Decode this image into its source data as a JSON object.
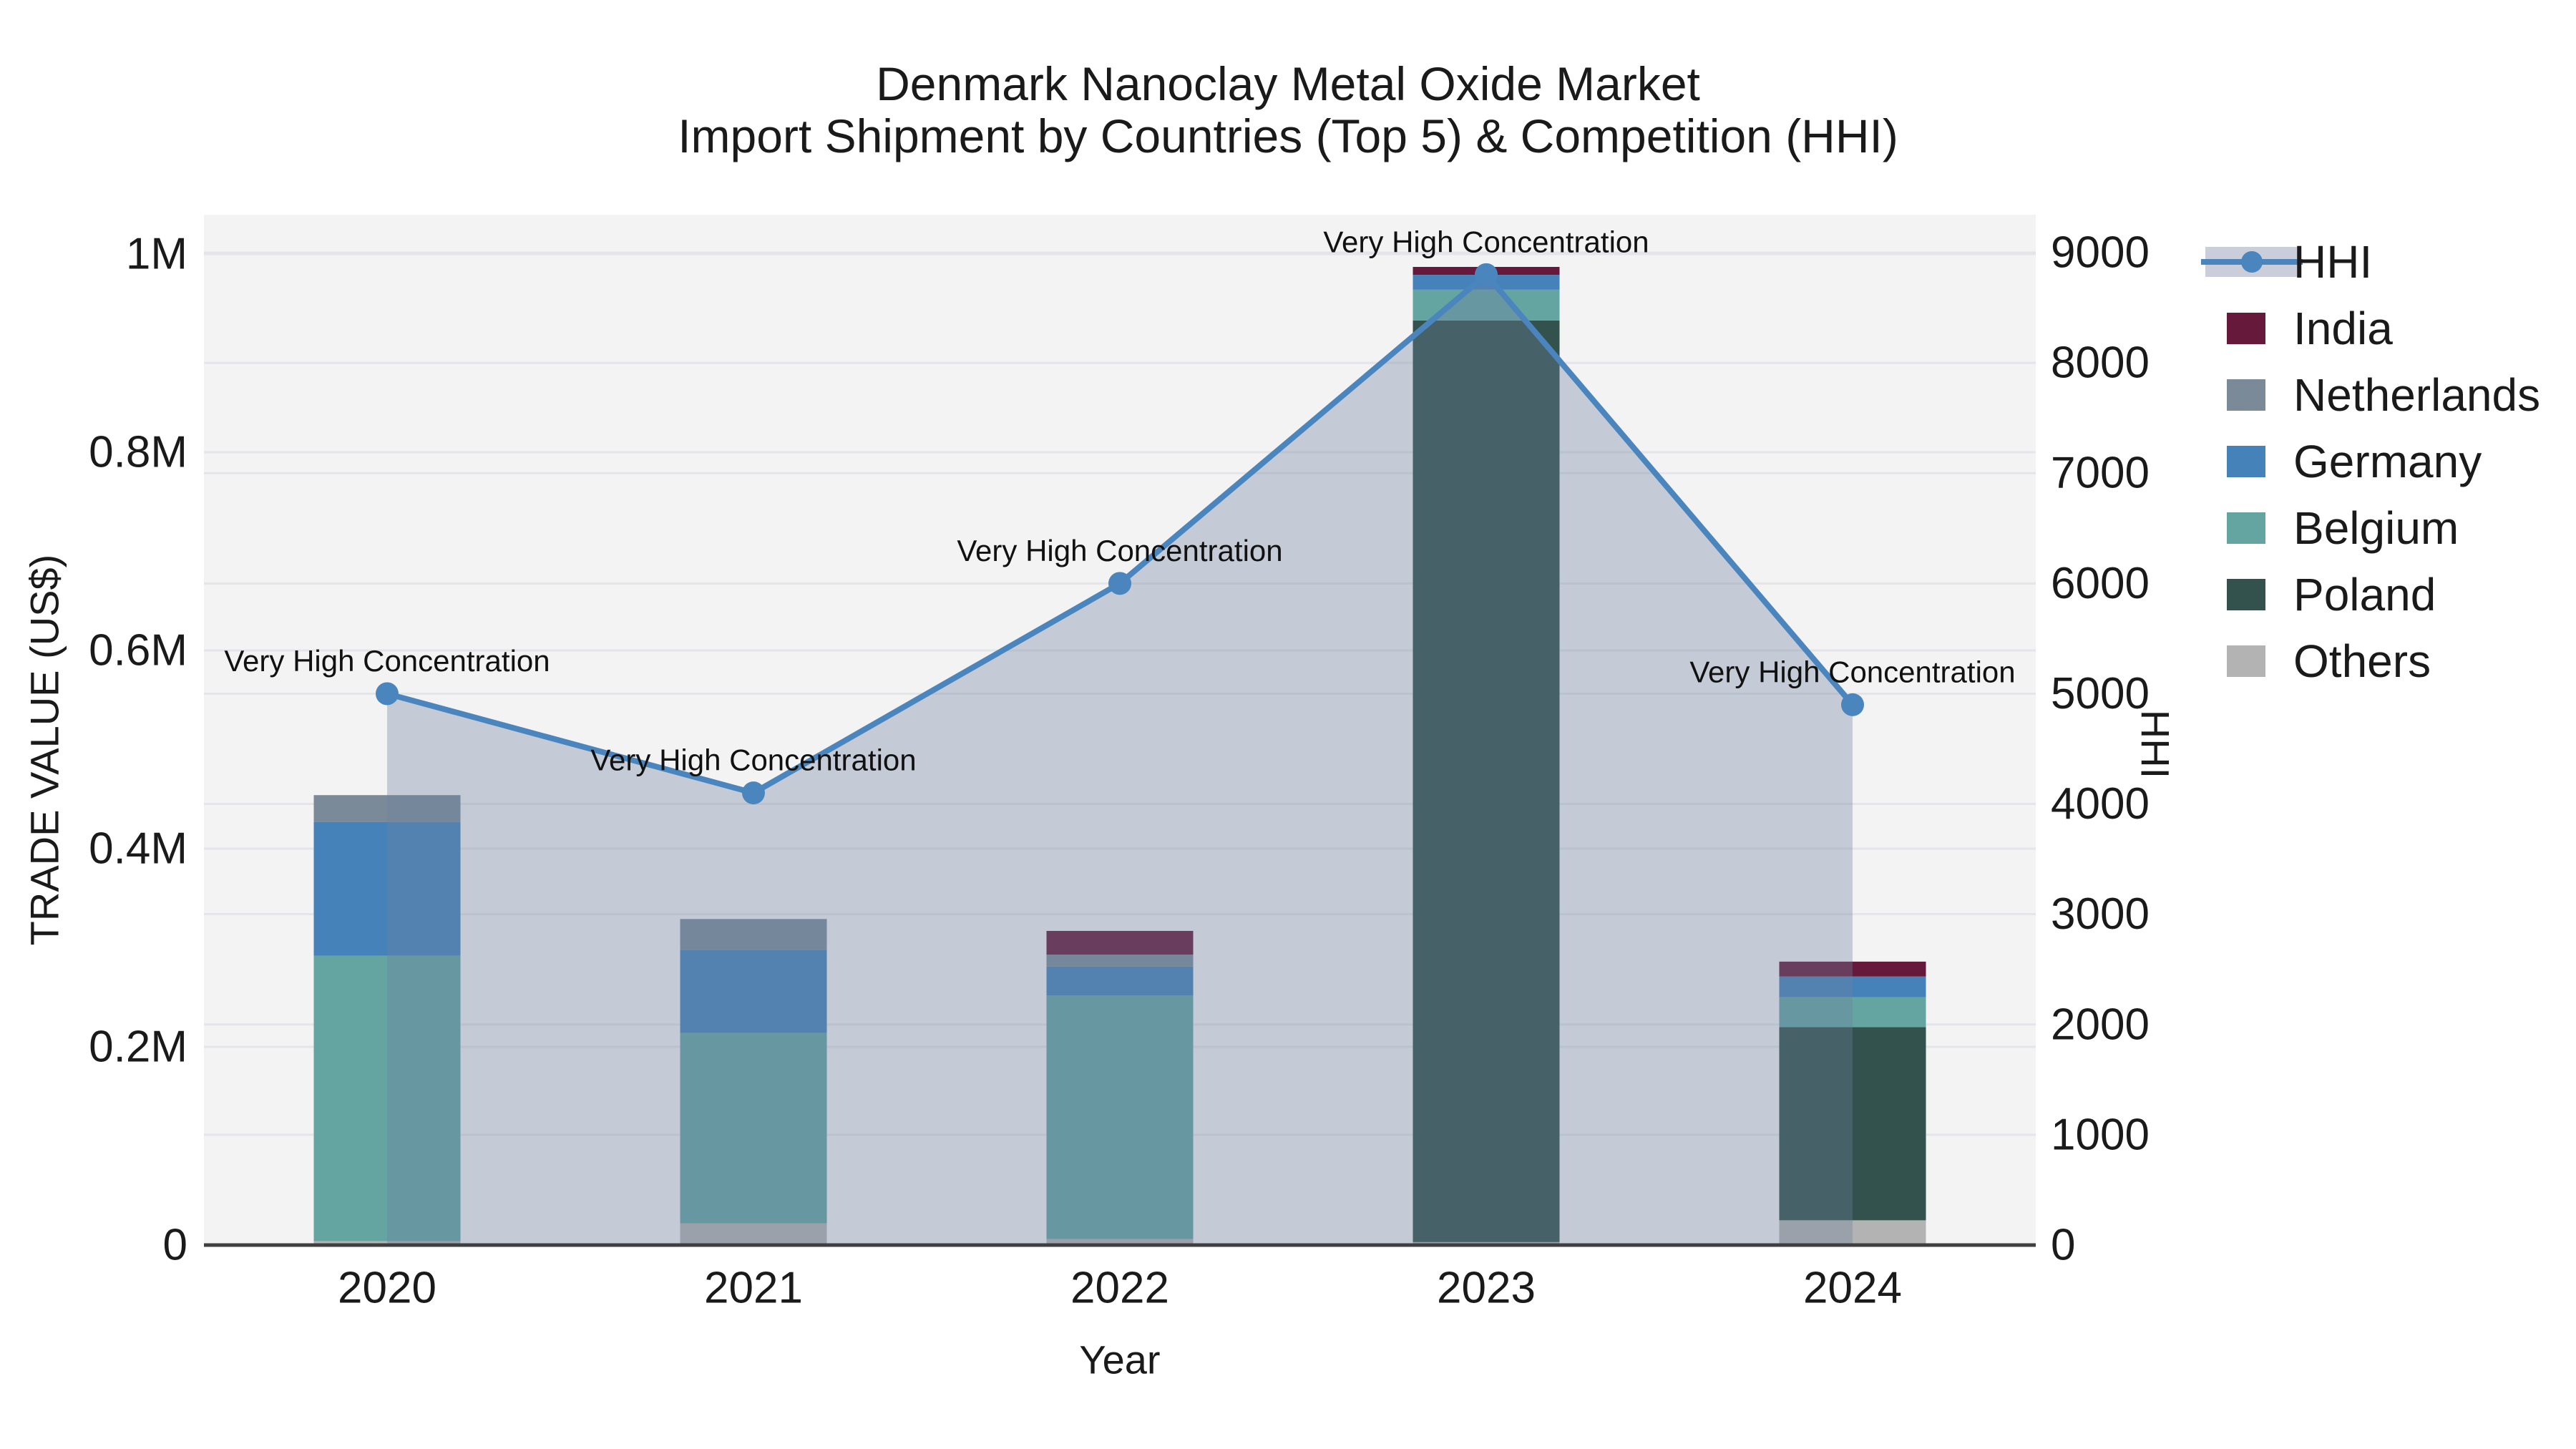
{
  "title": {
    "line1": "Denmark Nanoclay Metal Oxide Market",
    "line2": "Import Shipment by Countries (Top 5) & Competition (HHI)"
  },
  "axes": {
    "left": {
      "title": "TRADE VALUE (US$)",
      "tick_labels": [
        "0",
        "0.2M",
        "0.4M",
        "0.6M",
        "0.8M",
        "1M"
      ],
      "tick_values": [
        0,
        200000,
        400000,
        600000,
        800000,
        1000000
      ],
      "range": [
        0,
        1000000
      ]
    },
    "right": {
      "title": "HHI",
      "tick_labels": [
        "0",
        "1000",
        "2000",
        "3000",
        "4000",
        "5000",
        "6000",
        "7000",
        "8000",
        "9000"
      ],
      "tick_values": [
        0,
        1000,
        2000,
        3000,
        4000,
        5000,
        6000,
        7000,
        8000,
        9000
      ],
      "range": [
        0,
        9000
      ]
    },
    "x": {
      "title": "Year",
      "categories": [
        "2020",
        "2021",
        "2022",
        "2023",
        "2024"
      ]
    }
  },
  "legend": {
    "items": [
      {
        "label": "HHI",
        "symbol": "line-marker",
        "color": "#4A85BE"
      },
      {
        "label": "India",
        "symbol": "square",
        "color": "#67193B"
      },
      {
        "label": "Netherlands",
        "symbol": "square",
        "color": "#7A8A99"
      },
      {
        "label": "Germany",
        "symbol": "square",
        "color": "#4682BA"
      },
      {
        "label": "Belgium",
        "symbol": "square",
        "color": "#64A4A1"
      },
      {
        "label": "Poland",
        "symbol": "square",
        "color": "#33514D"
      },
      {
        "label": "Others",
        "symbol": "square",
        "color": "#B3B3B3"
      }
    ]
  },
  "colors": {
    "plot_bg": "#F3F3F4",
    "grid": "#E4E5E9",
    "axis_line": "#3F3F3F",
    "hhi_line": "#4A85BE",
    "hhi_fill": "rgba(110,130,158,0.35)",
    "text": "#1A1A1A"
  },
  "chart_data": {
    "type": "combo-stacked-bar-line",
    "title": "Denmark Nanoclay Metal Oxide Market — Import Shipment by Countries (Top 5) & Competition (HHI)",
    "categories": [
      "2020",
      "2021",
      "2022",
      "2023",
      "2024"
    ],
    "xlabel": "Year",
    "ylabel_left": "TRADE VALUE (US$)",
    "ylabel_right": "HHI",
    "ylim_left": [
      0,
      1000000
    ],
    "ylim_right": [
      0,
      9000
    ],
    "grid": true,
    "legend_position": "right",
    "stack_order_bottom_to_top": [
      "Others",
      "Poland",
      "Belgium",
      "Germany",
      "Netherlands",
      "India"
    ],
    "bar_series": [
      {
        "name": "Others",
        "color": "#B3B3B3",
        "values": [
          4000,
          22000,
          6000,
          3000,
          25000
        ]
      },
      {
        "name": "Poland",
        "color": "#33514D",
        "values": [
          0,
          0,
          0,
          930000,
          195000
        ]
      },
      {
        "name": "Belgium",
        "color": "#64A4A1",
        "values": [
          288000,
          192000,
          246000,
          31000,
          30000
        ]
      },
      {
        "name": "Germany",
        "color": "#4682BA",
        "values": [
          135000,
          84000,
          29000,
          15000,
          21000
        ]
      },
      {
        "name": "Netherlands",
        "color": "#7A8A99",
        "values": [
          27000,
          31000,
          12000,
          0,
          0
        ]
      },
      {
        "name": "India",
        "color": "#67193B",
        "values": [
          0,
          0,
          24000,
          8000,
          15000
        ]
      }
    ],
    "line_series": {
      "name": "HHI",
      "axis": "right",
      "color": "#4A85BE",
      "fill": "rgba(110,130,158,0.35)",
      "values": [
        5000,
        4100,
        6000,
        8800,
        4900
      ],
      "annotations": [
        "Very High Concentration",
        "Very High Concentration",
        "Very High Concentration",
        "Very High Concentration",
        "Very High Concentration"
      ]
    }
  }
}
